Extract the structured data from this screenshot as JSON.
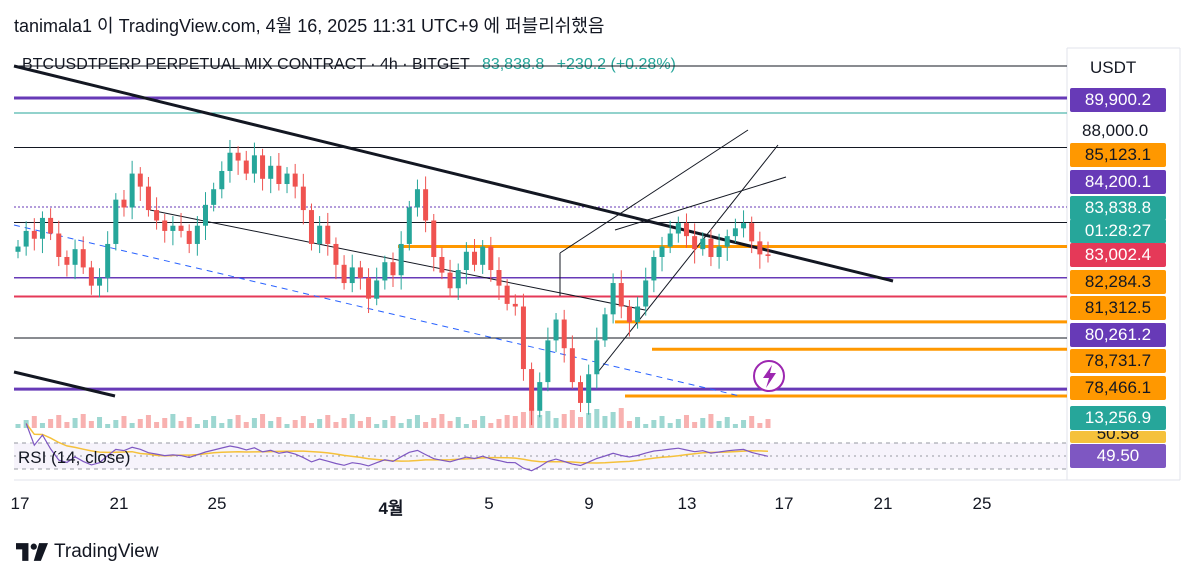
{
  "header": {
    "published": "tanimala1 이 TradingView.com, 4월 16, 2025 11:31 UTC+9 에 퍼블리쉬했음"
  },
  "symbol": {
    "title": "BTCUSDTPERP PERPETUAL MIX CONTRACT · 4h · BITGET",
    "price": "83,838.8",
    "change": "+230.2 (+0.28%)"
  },
  "colors": {
    "up": "#26a69a",
    "down": "#ef5350",
    "purple": "#673ab7",
    "orange": "#ff9800",
    "red_line": "#e53958",
    "rsi_line": "#7e57c2",
    "rsi_ma": "#f5c13b"
  },
  "price_axis": {
    "currency": "USDT",
    "level_88000": "88,000.0",
    "tags": [
      {
        "value": 89900.2,
        "label": "89,900.2",
        "color": "#673ab7"
      },
      {
        "value": 85123.1,
        "label": "85,123.1",
        "color": "#ff9800"
      },
      {
        "value": 84200.1,
        "label": "84,200.1",
        "color": "#673ab7"
      },
      {
        "value": 83838.8,
        "label": "83,838.8",
        "color": "#26a69a"
      },
      {
        "value": 83838.8,
        "label": "01:28:27",
        "color": "#26a69a"
      },
      {
        "value": 83002.4,
        "label": "83,002.4",
        "color": "#e53958"
      },
      {
        "value": 82284.3,
        "label": "82,284.3",
        "color": "#ff9800"
      },
      {
        "value": 81312.5,
        "label": "81,312.5",
        "color": "#ff9800"
      },
      {
        "value": 80261.2,
        "label": "80,261.2",
        "color": "#673ab7"
      },
      {
        "value": 78731.7,
        "label": "78,731.7",
        "color": "#ff9800"
      },
      {
        "value": 78466.1,
        "label": "78,466.1",
        "color": "#ff9800"
      }
    ],
    "volume_tag": "13,256.9",
    "rsi_tag": "49.50",
    "rsi_ma_tag": "50.58"
  },
  "rsi": {
    "label": "RSI (14, close)"
  },
  "x_axis": {
    "ticks": [
      "17",
      "21",
      "25",
      "4월",
      "5",
      "9",
      "13",
      "17",
      "21",
      "25"
    ]
  },
  "footer": {
    "brand": "TradingView"
  },
  "chart_data": {
    "type": "candlestick",
    "title": "BTCUSDTPERP PERPETUAL MIX CONTRACT · 4h · BITGET",
    "x_ticks": [
      "17",
      "21",
      "25",
      "4월",
      "5",
      "9",
      "13",
      "17",
      "21",
      "25"
    ],
    "y_axis_unit": "USDT",
    "ylim": [
      77500,
      90500
    ],
    "close_series": [
      84200,
      84800,
      84500,
      85300,
      84700,
      83800,
      83500,
      84100,
      83400,
      82700,
      83000,
      84300,
      86000,
      85700,
      87000,
      86500,
      85600,
      85200,
      84800,
      85000,
      84800,
      84300,
      85000,
      85800,
      86400,
      87100,
      87800,
      87500,
      87000,
      87700,
      86800,
      87300,
      86600,
      87000,
      86500,
      85600,
      84300,
      85000,
      84300,
      83500,
      82800,
      83400,
      83000,
      82200,
      82900,
      83600,
      83100,
      84300,
      85700,
      86400,
      85200,
      83800,
      83200,
      82600,
      83300,
      84000,
      83500,
      84200,
      83300,
      82700,
      82000,
      81900,
      79500,
      77900,
      79000,
      80600,
      81400,
      80300,
      79000,
      78200,
      79300,
      80600,
      81600,
      82800,
      81900,
      81300,
      81900,
      82900,
      83800,
      84200,
      84700,
      85100,
      84600,
      84100,
      84500,
      83800,
      84200,
      84600,
      84900,
      85100,
      84400,
      83900,
      83838.8
    ],
    "rsi_period": 14,
    "rsi_last": 49.5,
    "horizontal_levels": [
      89900.2,
      88000.0,
      85123.1,
      84200.1,
      83002.4,
      82284.3,
      81312.5,
      80261.2,
      78731.7,
      78466.1
    ],
    "volume_last": 13256.9,
    "grid": false
  }
}
